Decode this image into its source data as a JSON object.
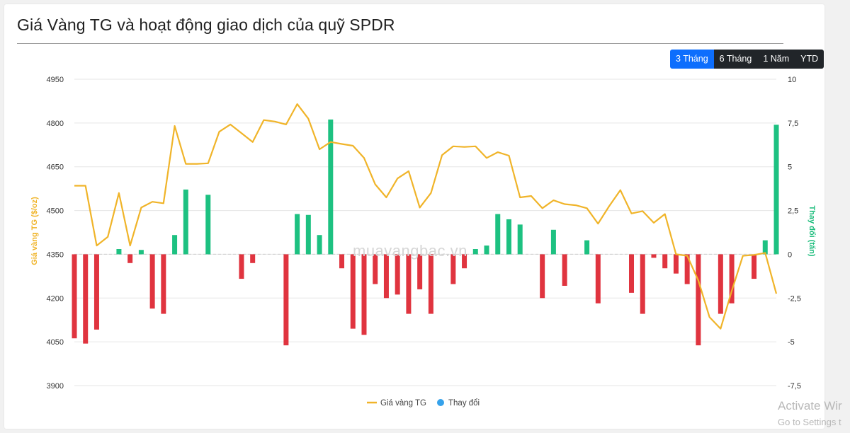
{
  "title": "Giá Vàng TG và hoạt động giao dịch của quỹ SPDR",
  "range_buttons": [
    {
      "label": "3 Tháng",
      "active": true
    },
    {
      "label": "6 Tháng",
      "active": false
    },
    {
      "label": "1 Năm",
      "active": false
    },
    {
      "label": "YTD",
      "active": false
    }
  ],
  "watermark": "muavangbac.vn",
  "activate_windows": {
    "line1": "Activate Wir",
    "line2": "Go to Settings t"
  },
  "colors": {
    "price_line": "#f0b429",
    "positive_bar": "#1dc181",
    "negative_bar": "#e0343f",
    "legend_dot": "#36a2eb",
    "active_button": "#0d6efd",
    "inactive_button": "#212529"
  },
  "chart_data": {
    "type": "line+bar",
    "y_left": {
      "label": "Giá vàng TG ($/oz)",
      "min": 3900,
      "max": 4950,
      "ticks": [
        3900,
        4050,
        4200,
        4350,
        4500,
        4650,
        4800,
        4950
      ],
      "tick_labels": [
        "3900",
        "4050",
        "4200",
        "4350",
        "4500",
        "4650",
        "4800",
        "4950"
      ]
    },
    "y_right": {
      "label": "Thay đổi (tấn)",
      "min": -7.5,
      "max": 10,
      "ticks": [
        -7.5,
        -5,
        -2.5,
        0,
        2.5,
        5,
        7.5,
        10
      ],
      "tick_labels": [
        "-7,5",
        "-5",
        "-2,5",
        "0",
        "2,5",
        "5",
        "7,5",
        "10"
      ]
    },
    "grid": true,
    "legend_position": "bottom",
    "series": [
      {
        "name": "Giá vàng TG",
        "type": "line",
        "axis": "left",
        "values": [
          4585,
          4585,
          4380,
          4410,
          4560,
          4380,
          4510,
          4530,
          4525,
          4790,
          4660,
          4660,
          4662,
          4770,
          4795,
          4765,
          4735,
          4810,
          4805,
          4795,
          4865,
          4815,
          4710,
          4735,
          4728,
          4722,
          4680,
          4590,
          4545,
          4610,
          4635,
          4510,
          4560,
          4690,
          4720,
          4718,
          4720,
          4680,
          4700,
          4688,
          4545,
          4550,
          4508,
          4535,
          4522,
          4518,
          4508,
          4455,
          4515,
          4570,
          4490,
          4498,
          4458,
          4488,
          4350,
          4345,
          4260,
          4135,
          4095,
          4225,
          4345,
          4348,
          4355,
          4215
        ]
      },
      {
        "name": "Thay đổi",
        "type": "bar",
        "axis": "right",
        "values": [
          -4.8,
          -5.1,
          -4.3,
          0,
          0.3,
          -0.5,
          0.25,
          -3.1,
          -3.4,
          1.1,
          3.7,
          0,
          3.4,
          0,
          0,
          -1.4,
          -0.5,
          0,
          0,
          -5.2,
          2.3,
          2.25,
          1.1,
          7.7,
          -0.8,
          -4.25,
          -4.6,
          -1.7,
          -2.5,
          -2.3,
          -3.4,
          -2.0,
          -3.4,
          0,
          -1.7,
          -0.8,
          0.3,
          0.5,
          2.3,
          2.0,
          1.7,
          0,
          -2.5,
          1.4,
          -1.8,
          0,
          0.8,
          -2.8,
          0,
          0,
          -2.2,
          -3.4,
          -0.2,
          -0.8,
          -1.1,
          -1.7,
          -5.2,
          0,
          -3.4,
          -2.8,
          0,
          -1.4,
          0.8,
          7.4
        ]
      }
    ]
  }
}
